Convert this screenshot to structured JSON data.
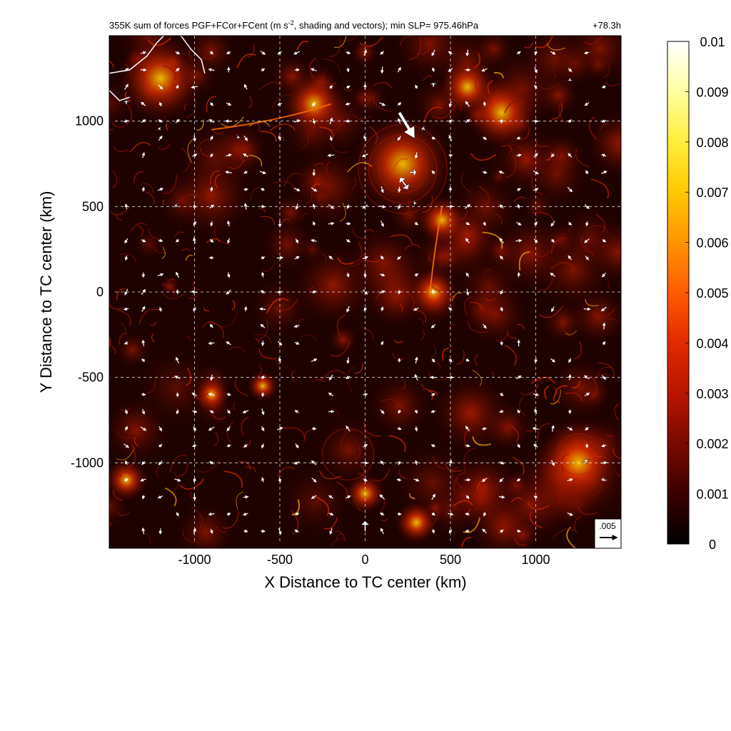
{
  "chart_data": {
    "type": "heatmap",
    "title": "355K sum of forces PGF+FCor+FCent (m s",
    "title_sup": "-2",
    "title_rest": ", shading and vectors); min SLP= 975.46hPa",
    "time_label": "+78.3h",
    "xlabel": "X Distance to TC center (km)",
    "ylabel": "Y Distance to TC center (km)",
    "xlim": [
      -1500,
      1500
    ],
    "ylim": [
      -1500,
      1500
    ],
    "xticks": [
      -1000,
      -500,
      0,
      500,
      1000
    ],
    "yticks": [
      -1000,
      -500,
      0,
      500,
      1000
    ],
    "grid": true,
    "colorbar": {
      "min": 0,
      "max": 0.01,
      "ticks": [
        0,
        0.001,
        0.002,
        0.003,
        0.004,
        0.005,
        0.006,
        0.007,
        0.008,
        0.009,
        0.01
      ],
      "tick_labels": [
        "0",
        "0.001",
        "0.002",
        "0.003",
        "0.004",
        "0.005",
        "0.006",
        "0.007",
        "0.008",
        "0.009",
        "0.01"
      ],
      "colors": [
        "#000000",
        "#3a0000",
        "#7a0a00",
        "#b81500",
        "#e22a00",
        "#ff5a00",
        "#ff9400",
        "#ffc800",
        "#ffee3a",
        "#ffffa0",
        "#ffffff"
      ]
    },
    "reference_vector": {
      "label": ".005",
      "magnitude": 0.005
    },
    "vectors": [
      {
        "x": 200,
        "y": 1050,
        "u": 0.0045,
        "v": -0.0075
      },
      {
        "x": 220,
        "y": 650,
        "u": 0.0015,
        "v": -0.0025
      },
      {
        "x": 260,
        "y": 700,
        "u": 0.002,
        "v": 0.0
      },
      {
        "x": 240,
        "y": 620,
        "u": -0.0018,
        "v": 0.0025
      },
      {
        "x": 0,
        "y": -1400,
        "u": 0.0,
        "v": 0.003
      },
      {
        "x": 400,
        "y": 1200,
        "u": 0.0,
        "v": 0.0012
      },
      {
        "x": -1400,
        "y": 1100,
        "u": 0.0,
        "v": 0.001
      },
      {
        "x": 1300,
        "y": -1000,
        "u": -0.0004,
        "v": 0.0009
      },
      {
        "x": 1400,
        "y": -1100,
        "u": -0.0006,
        "v": 0.0003
      },
      {
        "x": -750,
        "y": 900,
        "u": 0.0005,
        "v": 0.0005
      },
      {
        "x": -1200,
        "y": 950,
        "u": -0.0005,
        "v": 0.0005
      },
      {
        "x": 350,
        "y": 950,
        "u": -0.0008,
        "v": 0.0005
      },
      {
        "x": 1200,
        "y": 1250,
        "u": 0.0,
        "v": -0.0008
      },
      {
        "x": -1100,
        "y": 500,
        "u": -0.0007,
        "v": 0.0004
      },
      {
        "x": 300,
        "y": 520,
        "u": -0.0008,
        "v": 0.0
      }
    ],
    "coastline": true
  }
}
